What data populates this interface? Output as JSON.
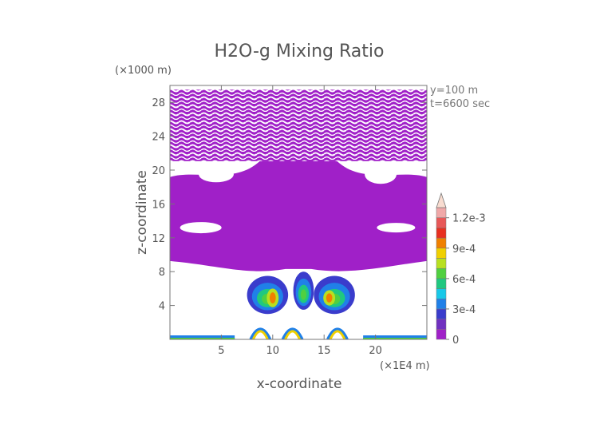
{
  "chart_data": {
    "type": "heatmap",
    "title": "H2O-g Mixing Ratio",
    "xlabel": "x-coordinate",
    "ylabel": "z-coordinate",
    "x_unit": "(×1E4 m)",
    "y_unit": "(×1000 m)",
    "annotations": [
      "y=100 m",
      "t=6600 sec"
    ],
    "x_ticks": [
      5,
      10,
      15,
      20
    ],
    "y_ticks": [
      4,
      8,
      12,
      16,
      20,
      24,
      28
    ],
    "xlim": [
      0,
      25
    ],
    "ylim": [
      0,
      30
    ],
    "colorbar": {
      "tick_labels": [
        "0",
        "3e-4",
        "6e-4",
        "9e-4",
        "1.2e-3"
      ],
      "tick_values": [
        0,
        0.0003,
        0.0006,
        0.0009,
        0.0012
      ],
      "levels": [
        0,
        0.0001,
        0.0002,
        0.0003,
        0.0004,
        0.0005,
        0.0006,
        0.0007,
        0.0008,
        0.0009,
        0.001,
        0.0011,
        0.0012
      ],
      "colors": [
        "#a020c8",
        "#7030c0",
        "#3a3ccc",
        "#2080e8",
        "#18c8e8",
        "#20c880",
        "#50d040",
        "#b8e020",
        "#f0d000",
        "#f08000",
        "#e83020",
        "#e85858",
        "#f0a8a8"
      ],
      "extend_color": "#f8dcd0"
    },
    "regions": [
      {
        "shape": "band",
        "x": [
          0,
          25
        ],
        "z": [
          8.5,
          29.5
        ],
        "value": 1e-05,
        "note": "stratiform moist layer, speckled above ~22"
      },
      {
        "shape": "blob",
        "x": [
          7.5,
          11.5
        ],
        "z": [
          3.0,
          7.5
        ],
        "value": 0.0005
      },
      {
        "shape": "blob",
        "x": [
          12.0,
          14.0
        ],
        "z": [
          3.5,
          8.0
        ],
        "value": 0.0005
      },
      {
        "shape": "blob",
        "x": [
          14.0,
          18.0
        ],
        "z": [
          3.0,
          7.5
        ],
        "value": 0.0005
      },
      {
        "shape": "core",
        "x": [
          9.5,
          10.5
        ],
        "z": [
          3.8,
          6.0
        ],
        "value": 0.0009
      },
      {
        "shape": "core",
        "x": [
          15.0,
          16.0
        ],
        "z": [
          4.0,
          5.8
        ],
        "value": 0.0009
      },
      {
        "shape": "surface",
        "x": [
          6.3,
          18.8
        ],
        "z": [
          0,
          2.2
        ],
        "value": 0.0008
      },
      {
        "shape": "surface",
        "x": [
          0,
          6.3
        ],
        "z": [
          0,
          0.5
        ],
        "value": 0.0006
      },
      {
        "shape": "surface",
        "x": [
          18.8,
          25
        ],
        "z": [
          0,
          0.5
        ],
        "value": 0.0006
      }
    ]
  }
}
